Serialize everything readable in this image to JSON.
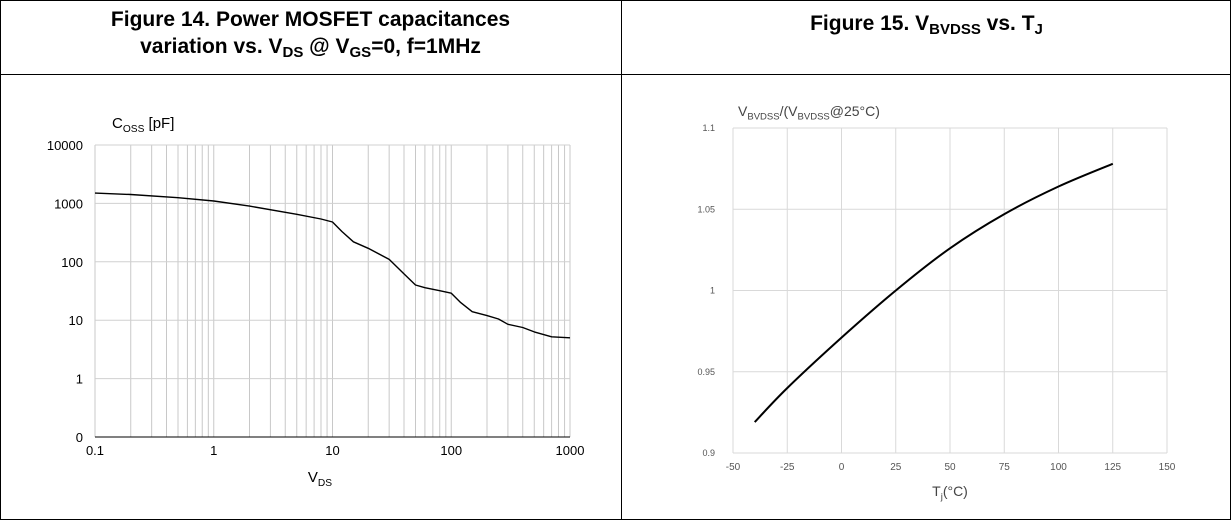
{
  "figure14": {
    "title_prefix": "Figure 14. Power MOSFET capacitances",
    "title_line2_prefix": "variation vs. V",
    "title_sub1": "DS",
    "title_mid": " @ V",
    "title_sub2": "GS",
    "title_suffix": "=0, f=1MHz"
  },
  "figure15": {
    "title_prefix": "Figure 15. V",
    "title_sub1": "BVDSS",
    "title_mid": " vs. T",
    "title_sub2": "J"
  },
  "chart_data": [
    {
      "type": "line",
      "ylabel": "C",
      "ylabel_sub": "OSS",
      "ylabel_unit": " [pF]",
      "xlabel": "V",
      "xlabel_sub": "DS",
      "x_scale": "log",
      "y_scale": "log",
      "xlim": [
        0.1,
        1000
      ],
      "ylim_labels": [
        "0",
        "1",
        "10",
        "100",
        "1000",
        "10000"
      ],
      "x_tick_labels": [
        "0.1",
        "1",
        "10",
        "100",
        "1000"
      ],
      "grid": true,
      "series": [
        {
          "x": [
            0.1,
            0.2,
            0.5,
            1,
            2,
            5,
            8,
            10,
            12,
            15,
            20,
            30,
            40,
            50,
            60,
            80,
            100,
            120,
            150,
            200,
            250,
            300,
            400,
            500,
            700,
            1000
          ],
          "y": [
            1500,
            1420,
            1250,
            1100,
            900,
            650,
            540,
            480,
            330,
            220,
            170,
            110,
            62,
            40,
            36,
            32,
            29,
            20,
            14,
            12,
            10.5,
            8.5,
            7.5,
            6.3,
            5.2,
            5.0
          ]
        }
      ]
    },
    {
      "type": "line",
      "ylabel_pre": "V",
      "ylabel_sub1": "BVDSS",
      "ylabel_mid": "/(V",
      "ylabel_sub2": "BVDSS",
      "ylabel_post": "@25°C)",
      "xlabel_pre": "T",
      "xlabel_sub": "j",
      "xlabel_post": "(°C)",
      "xlim": [
        -50,
        150
      ],
      "ylim": [
        0.9,
        1.1
      ],
      "x_ticks": [
        -50,
        -25,
        0,
        25,
        50,
        75,
        100,
        125,
        150
      ],
      "y_ticks": [
        0.9,
        0.95,
        1,
        1.05,
        1.1
      ],
      "grid": true,
      "series": [
        {
          "x": [
            -40,
            -25,
            0,
            25,
            50,
            75,
            100,
            125
          ],
          "y": [
            0.919,
            0.94,
            0.971,
            1.0,
            1.026,
            1.047,
            1.064,
            1.078
          ]
        }
      ]
    }
  ]
}
